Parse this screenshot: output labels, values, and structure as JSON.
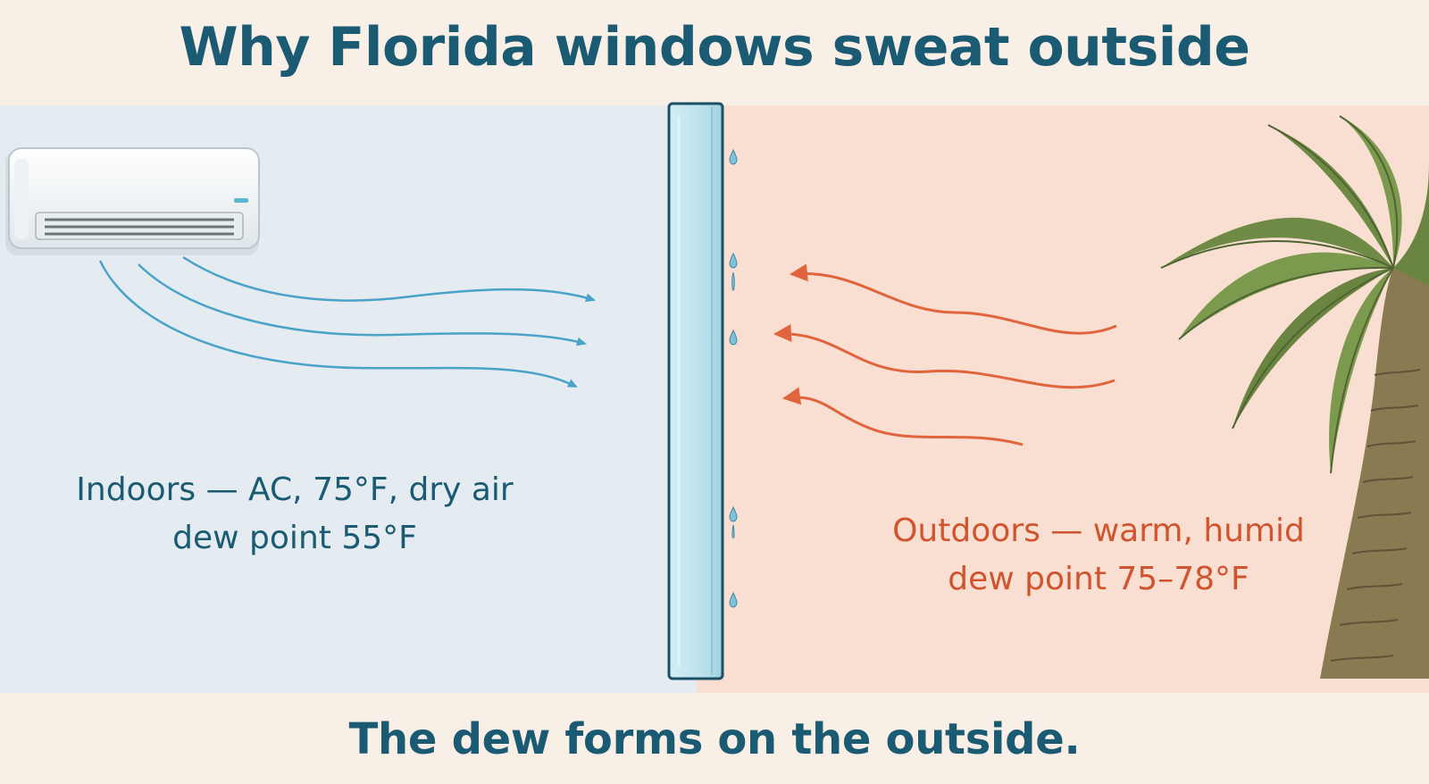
{
  "title": "Why Florida windows sweat outside",
  "indoor": {
    "line1": "Indoors — AC, 75°F, dry air",
    "line2": "dew point 55°F"
  },
  "outdoor": {
    "line1": "Outdoors — warm, humid",
    "line2": "dew point 75–78°F"
  },
  "footer": "The dew forms on the outside.",
  "icons": [
    "air-conditioner-icon",
    "window-glass-icon",
    "water-droplet-icon",
    "palm-tree-icon",
    "airflow-arrow-icon"
  ],
  "colors": {
    "title": "#1a5a73",
    "indoor_bg": "#e4ecf1",
    "outdoor_bg": "#f8dfd2",
    "cool_air": "#4aa3c7",
    "warm_air": "#e0653f",
    "glass": "#bfe2ec",
    "glass_edge": "#1a4f66"
  }
}
